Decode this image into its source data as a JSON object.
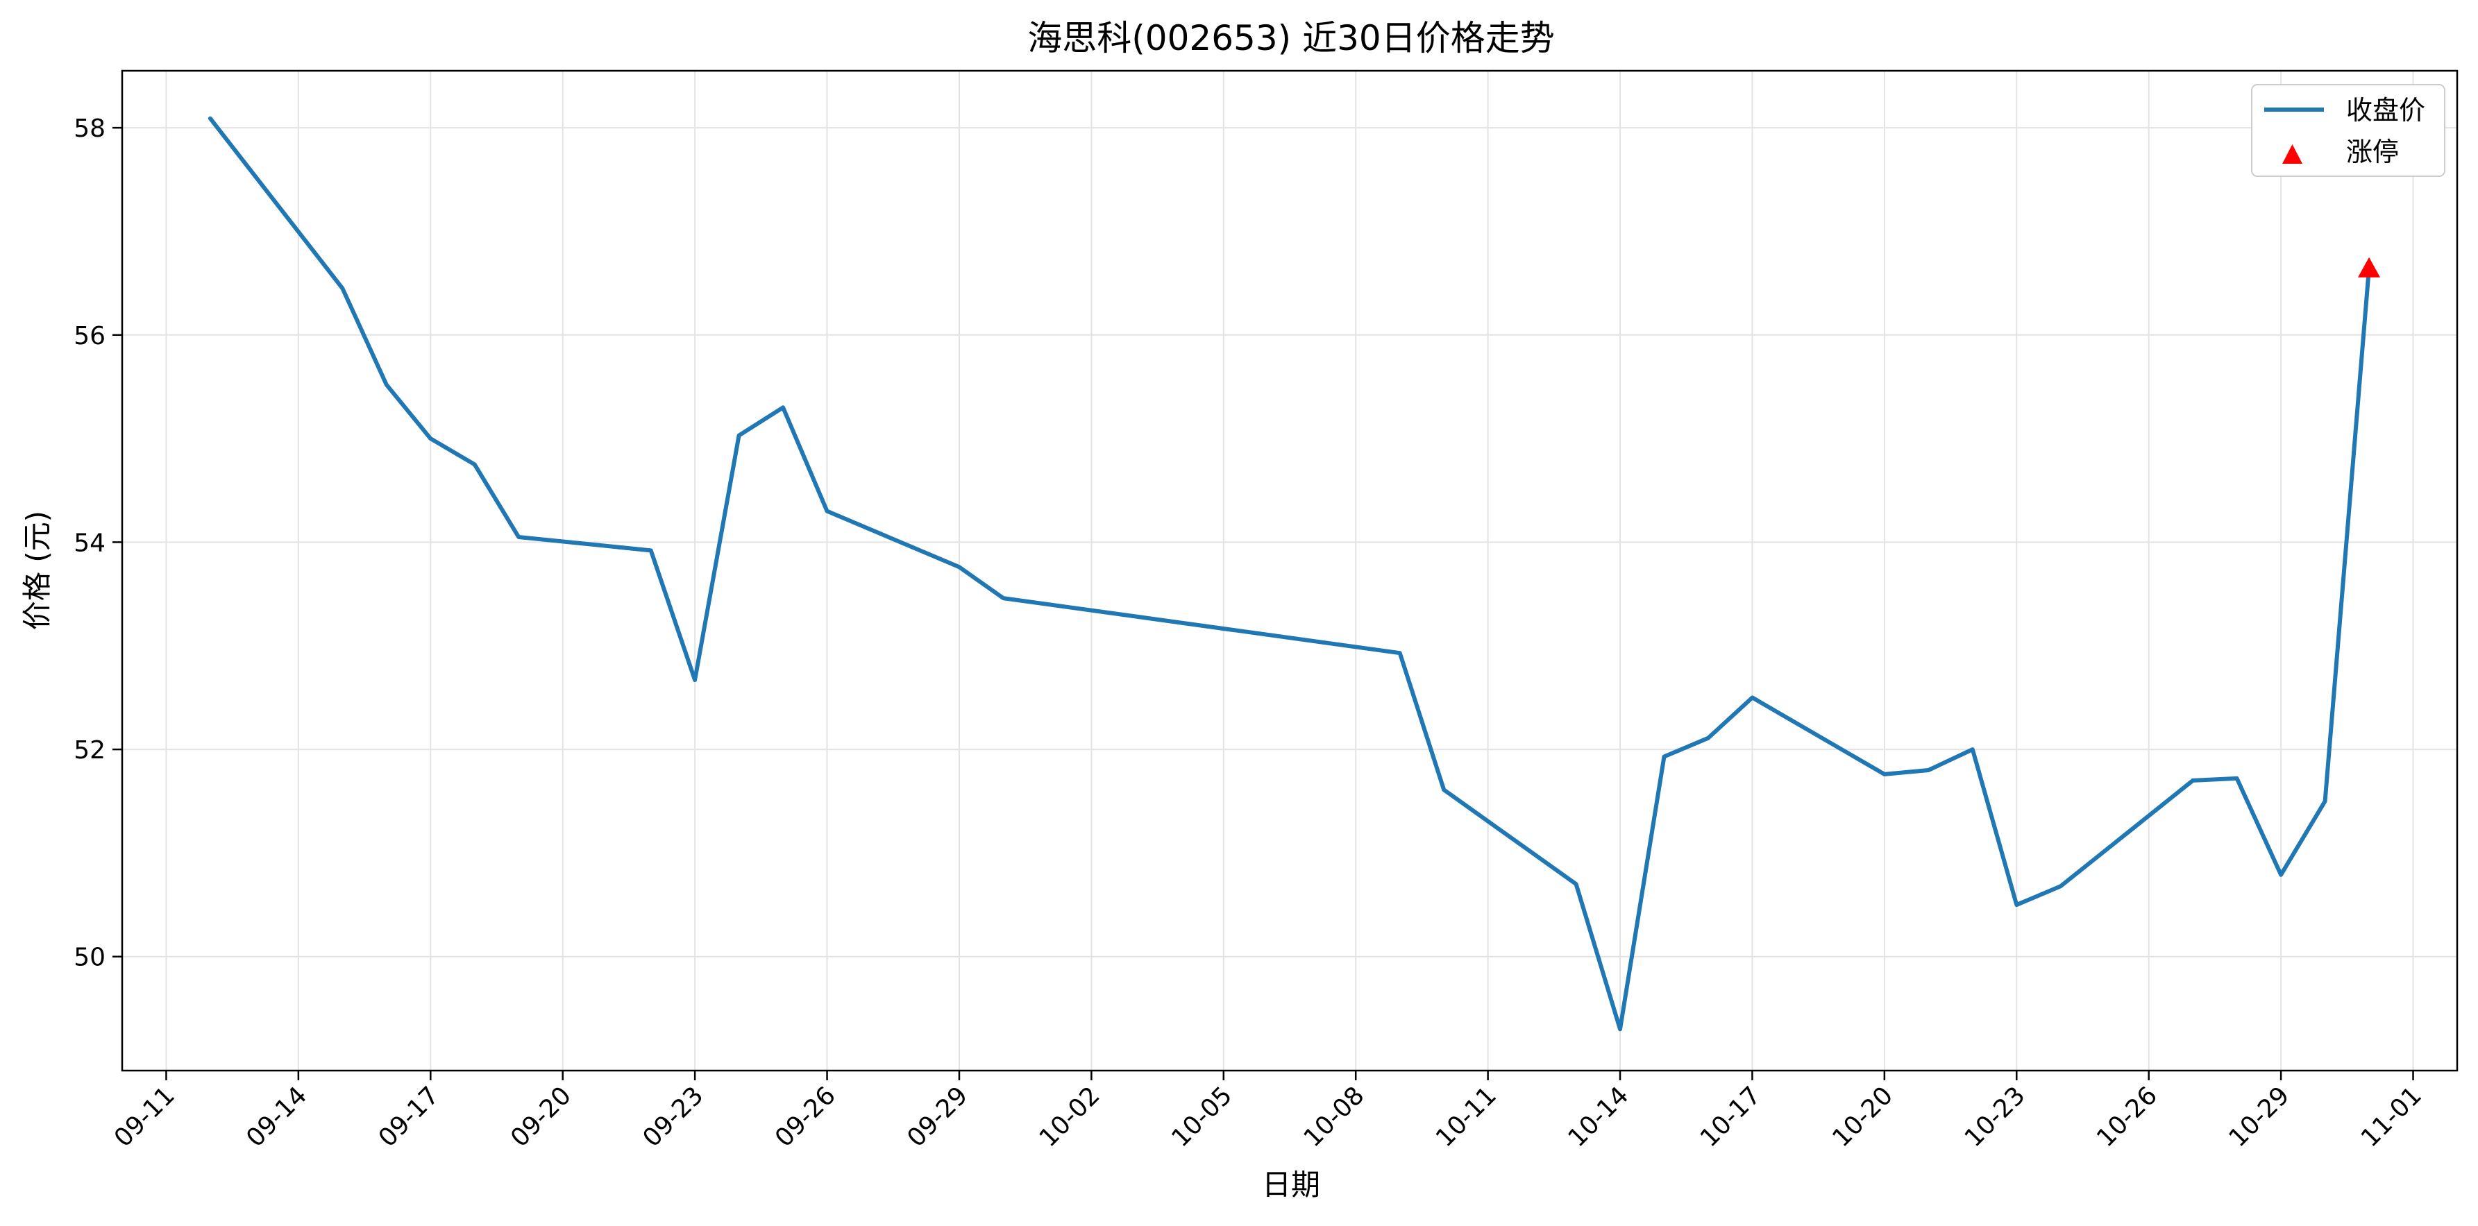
{
  "chart_data": {
    "type": "line",
    "title": "海思科(002653) 近30日价格走势",
    "xlabel": "日期",
    "ylabel": "价格 (元)",
    "x_ticks": [
      "09-11",
      "09-14",
      "09-17",
      "09-20",
      "09-23",
      "09-26",
      "09-29",
      "10-02",
      "10-05",
      "10-08",
      "10-11",
      "10-14",
      "10-17",
      "10-20",
      "10-23",
      "10-26",
      "10-29",
      "11-01"
    ],
    "y_ticks": [
      50,
      52,
      54,
      56,
      58
    ],
    "xlim": [
      "2025-09-10",
      "2025-11-02"
    ],
    "ylim": [
      48.9,
      58.55
    ],
    "grid": true,
    "legend_position": "top-right",
    "series": [
      {
        "name": "收盘价",
        "color": "#1f77b4",
        "points": [
          {
            "date": "2025-09-12",
            "value": 58.09
          },
          {
            "date": "2025-09-15",
            "value": 56.45
          },
          {
            "date": "2025-09-16",
            "value": 55.52
          },
          {
            "date": "2025-09-17",
            "value": 55.0
          },
          {
            "date": "2025-09-18",
            "value": 54.75
          },
          {
            "date": "2025-09-19",
            "value": 54.05
          },
          {
            "date": "2025-09-22",
            "value": 53.92
          },
          {
            "date": "2025-09-23",
            "value": 52.67
          },
          {
            "date": "2025-09-24",
            "value": 55.03
          },
          {
            "date": "2025-09-25",
            "value": 55.3
          },
          {
            "date": "2025-09-26",
            "value": 54.3
          },
          {
            "date": "2025-09-29",
            "value": 53.76
          },
          {
            "date": "2025-09-30",
            "value": 53.46
          },
          {
            "date": "2025-10-09",
            "value": 52.93
          },
          {
            "date": "2025-10-10",
            "value": 51.61
          },
          {
            "date": "2025-10-13",
            "value": 50.7
          },
          {
            "date": "2025-10-14",
            "value": 49.3
          },
          {
            "date": "2025-10-15",
            "value": 51.93
          },
          {
            "date": "2025-10-16",
            "value": 52.11
          },
          {
            "date": "2025-10-17",
            "value": 52.5
          },
          {
            "date": "2025-10-20",
            "value": 51.76
          },
          {
            "date": "2025-10-21",
            "value": 51.8
          },
          {
            "date": "2025-10-22",
            "value": 52.0
          },
          {
            "date": "2025-10-23",
            "value": 50.5
          },
          {
            "date": "2025-10-24",
            "value": 50.68
          },
          {
            "date": "2025-10-27",
            "value": 51.7
          },
          {
            "date": "2025-10-28",
            "value": 51.72
          },
          {
            "date": "2025-10-29",
            "value": 50.79
          },
          {
            "date": "2025-10-30",
            "value": 51.5
          },
          {
            "date": "2025-10-31",
            "value": 56.65
          }
        ]
      },
      {
        "name": "涨停",
        "color": "#ff0000",
        "marker": "triangle-up",
        "points": [
          {
            "date": "2025-10-31",
            "value": 56.65
          }
        ]
      }
    ]
  }
}
